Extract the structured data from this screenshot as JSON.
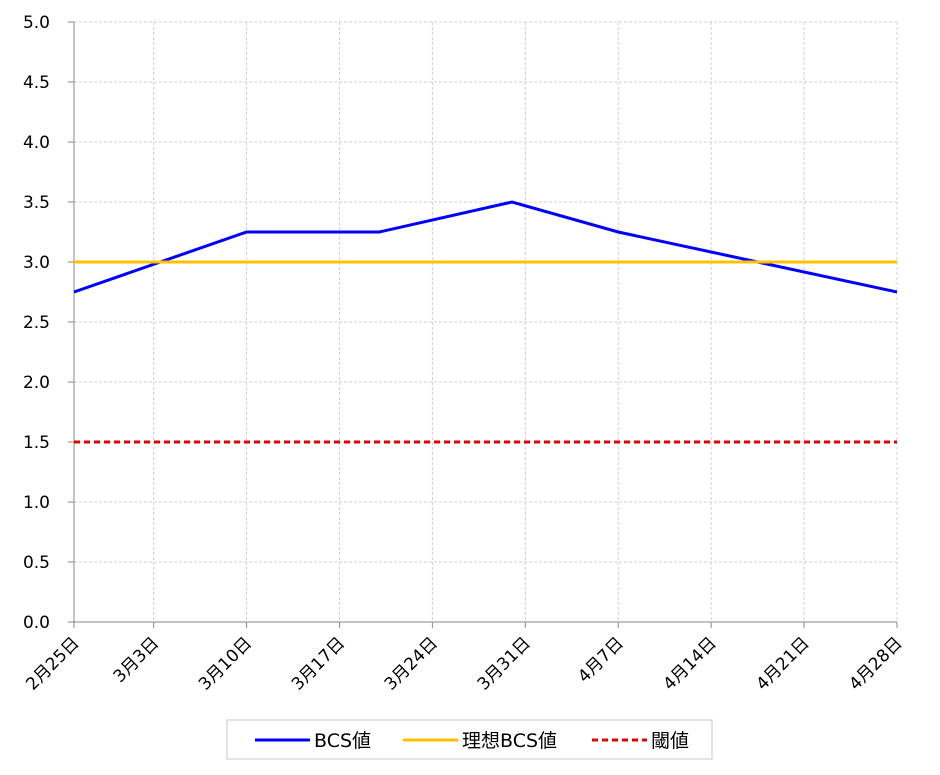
{
  "chart_data": {
    "type": "line",
    "xticks": [
      "2月25日",
      "3月3日",
      "3月10日",
      "3月17日",
      "3月24日",
      "3月31日",
      "4月7日",
      "4月14日",
      "4月21日",
      "4月28日"
    ],
    "xlim": [
      "2月25日",
      "4月28日"
    ],
    "ylim": [
      0,
      5
    ],
    "yticks": [
      {
        "value": 0,
        "label": "0.0"
      },
      {
        "value": 0.5,
        "label": "0.5"
      },
      {
        "value": 1,
        "label": "1.0"
      },
      {
        "value": 1.5,
        "label": "1.5"
      },
      {
        "value": 2,
        "label": "2.0"
      },
      {
        "value": 2.5,
        "label": "2.5"
      },
      {
        "value": 3,
        "label": "3.0"
      },
      {
        "value": 3.5,
        "label": "3.5"
      },
      {
        "value": 4,
        "label": "4.0"
      },
      {
        "value": 4.5,
        "label": "4.5"
      },
      {
        "value": 5,
        "label": "5.0"
      }
    ],
    "grid": true,
    "legend": "bottom",
    "series": [
      {
        "name": "BCS値",
        "color": "#0000ff",
        "dash": false,
        "x": [
          "2月25日",
          "3月10日",
          "3月20日",
          "3月30日",
          "4月7日",
          "4月28日"
        ],
        "values": [
          2.75,
          3.25,
          3.25,
          3.5,
          3.25,
          2.75
        ]
      },
      {
        "name": "理想BCS値",
        "color": "#ffc000",
        "dash": false,
        "x": [
          "2月25日",
          "4月28日"
        ],
        "values": [
          3,
          3
        ]
      },
      {
        "name": "閾値",
        "color": "#e00000",
        "dash": true,
        "x": [
          "2月25日",
          "4月28日"
        ],
        "values": [
          1.5,
          1.5
        ]
      }
    ]
  }
}
